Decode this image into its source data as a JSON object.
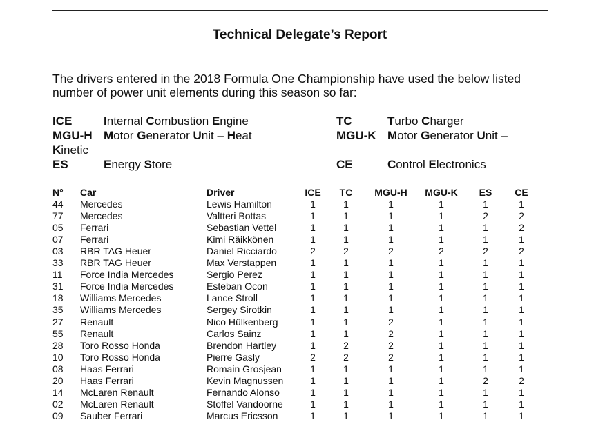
{
  "title": "Technical Delegate’s Report",
  "intro": "The drivers entered in the 2018 Formula One Championship have used the below listed number of power unit elements during this season so far:",
  "legend": [
    {
      "abbr": "ICE",
      "desc": "Internal Combustion Engine"
    },
    {
      "abbr": "TC",
      "desc": "Turbo Charger"
    },
    {
      "abbr": "MGU-H",
      "desc": "Motor Generator Unit – Heat"
    },
    {
      "abbr": "MGU-K",
      "desc": "Motor Generator Unit –",
      "desc_wrap": "Kinetic"
    },
    {
      "abbr": "ES",
      "desc": "Energy Store"
    },
    {
      "abbr": "CE",
      "desc": "Control Electronics"
    }
  ],
  "table": {
    "headers": [
      "N°",
      "Car",
      "Driver",
      "ICE",
      "TC",
      "MGU-H",
      "MGU-K",
      "ES",
      "CE"
    ],
    "rows": [
      [
        "44",
        "Mercedes",
        "Lewis Hamilton",
        "1",
        "1",
        "1",
        "1",
        "1",
        "1"
      ],
      [
        "77",
        "Mercedes",
        "Valtteri Bottas",
        "1",
        "1",
        "1",
        "1",
        "2",
        "2"
      ],
      [
        "05",
        "Ferrari",
        "Sebastian Vettel",
        "1",
        "1",
        "1",
        "1",
        "1",
        "2"
      ],
      [
        "07",
        "Ferrari",
        "Kimi Räikkönen",
        "1",
        "1",
        "1",
        "1",
        "1",
        "1"
      ],
      [
        "03",
        "RBR TAG Heuer",
        "Daniel Ricciardo",
        "2",
        "2",
        "2",
        "2",
        "2",
        "2"
      ],
      [
        "33",
        "RBR TAG Heuer",
        "Max Verstappen",
        "1",
        "1",
        "1",
        "1",
        "1",
        "1"
      ],
      [
        "11",
        "Force India Mercedes",
        "Sergio Perez",
        "1",
        "1",
        "1",
        "1",
        "1",
        "1"
      ],
      [
        "31",
        "Force India Mercedes",
        "Esteban Ocon",
        "1",
        "1",
        "1",
        "1",
        "1",
        "1"
      ],
      [
        "18",
        "Williams Mercedes",
        "Lance Stroll",
        "1",
        "1",
        "1",
        "1",
        "1",
        "1"
      ],
      [
        "35",
        "Williams Mercedes",
        "Sergey Sirotkin",
        "1",
        "1",
        "1",
        "1",
        "1",
        "1"
      ],
      [
        "27",
        "Renault",
        "Nico Hülkenberg",
        "1",
        "1",
        "2",
        "1",
        "1",
        "1"
      ],
      [
        "55",
        "Renault",
        "Carlos Sainz",
        "1",
        "1",
        "2",
        "1",
        "1",
        "1"
      ],
      [
        "28",
        "Toro Rosso Honda",
        "Brendon Hartley",
        "1",
        "2",
        "2",
        "1",
        "1",
        "1"
      ],
      [
        "10",
        "Toro Rosso Honda",
        "Pierre Gasly",
        "2",
        "2",
        "2",
        "1",
        "1",
        "1"
      ],
      [
        "08",
        "Haas Ferrari",
        "Romain Grosjean",
        "1",
        "1",
        "1",
        "1",
        "1",
        "1"
      ],
      [
        "20",
        "Haas Ferrari",
        "Kevin Magnussen",
        "1",
        "1",
        "1",
        "1",
        "2",
        "2"
      ],
      [
        "14",
        "McLaren Renault",
        "Fernando Alonso",
        "1",
        "1",
        "1",
        "1",
        "1",
        "1"
      ],
      [
        "02",
        "McLaren Renault",
        "Stoffel Vandoorne",
        "1",
        "1",
        "1",
        "1",
        "1",
        "1"
      ],
      [
        "09",
        "Sauber Ferrari",
        "Marcus Ericsson",
        "1",
        "1",
        "1",
        "1",
        "1",
        "1"
      ]
    ]
  }
}
